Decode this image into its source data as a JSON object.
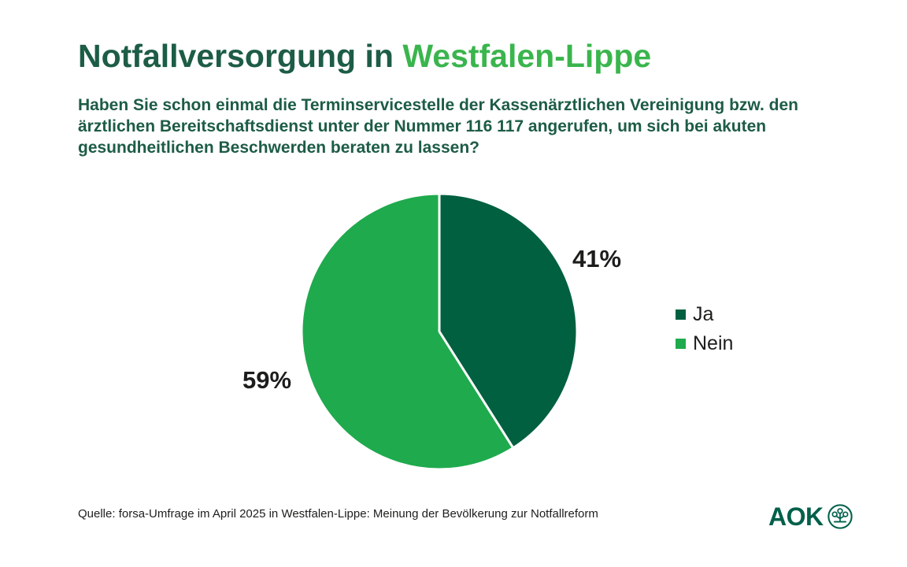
{
  "header": {
    "title_prefix": "Notfallversorgung in ",
    "title_highlight": "Westfalen-Lippe",
    "subtitle": "Haben Sie schon einmal die Terminservicestelle der Kassenärztlichen Vereinigung bzw. den ärztlichen Bereitschaftsdienst unter der Nummer 116 117 angerufen, um sich bei akuten gesundheitlichen Beschwerden beraten zu lassen?"
  },
  "chart_data": {
    "type": "pie",
    "title": "Notfallversorgung in Westfalen-Lippe",
    "categories": [
      "Ja",
      "Nein"
    ],
    "values": [
      41,
      59
    ],
    "unit": "%",
    "data_labels": [
      "41%",
      "59%"
    ],
    "slice_colors": [
      "#00603f",
      "#1faa4d"
    ],
    "start_angle_deg": 0,
    "direction": "clockwise",
    "separator_color": "#ffffff",
    "legend": {
      "position": "right",
      "entries": [
        {
          "label": "Ja",
          "color": "#00603f"
        },
        {
          "label": "Nein",
          "color": "#1faa4d"
        }
      ]
    }
  },
  "footer": {
    "source": "Quelle: forsa-Umfrage im April 2025 in Westfalen-Lippe: Meinung der Bevölkerung zur Notfallreform",
    "logo_text": "AOK"
  },
  "colors": {
    "title_dark_green": "#1d5c45",
    "title_light_green": "#3ab54d",
    "pie_dark_green": "#00603f",
    "pie_light_green": "#1faa4d",
    "text_black": "#1d1d1b",
    "logo_green": "#00604a",
    "background": "#ffffff"
  }
}
